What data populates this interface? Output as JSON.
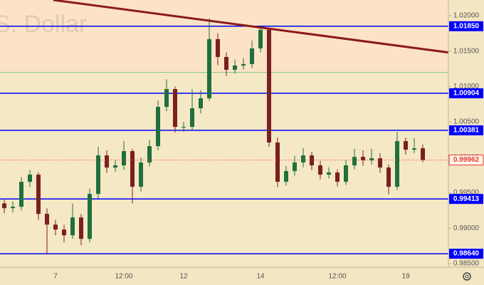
{
  "chart_data": {
    "type": "candlestick",
    "watermark": "S. Dollar",
    "categories": [
      null,
      null,
      null,
      null,
      null,
      null,
      "7",
      null,
      null,
      null,
      null,
      null,
      null,
      null,
      "12:00",
      null,
      null,
      null,
      null,
      null,
      null,
      "12",
      null,
      null,
      null,
      null,
      null,
      null,
      null,
      null,
      "14",
      null,
      null,
      null,
      null,
      null,
      null,
      null,
      null,
      "12:00",
      null,
      null,
      null,
      null,
      null,
      null,
      null,
      "19",
      null,
      null
    ],
    "open": [
      0.9935,
      0.99283,
      0.99303,
      0.99655,
      0.99756,
      0.99202,
      0.99051,
      0.98981,
      0.989,
      0.99152,
      0.9885,
      0.99484,
      1.00027,
      0.99856,
      0.99887,
      1.00088,
      0.99585,
      0.99927,
      1.00158,
      1.00712,
      1.00963,
      1.0043,
      1.0043,
      1.00692,
      1.00833,
      1.01668,
      1.01416,
      1.01235,
      1.01296,
      1.01316,
      1.01537,
      1.01799,
      1.00209,
      0.99655,
      0.99806,
      0.99927,
      1.00027,
      0.99887,
      0.99756,
      0.99786,
      0.99655,
      0.99887,
      1.00007,
      0.99957,
      0.99987,
      0.99856,
      0.99585,
      1.00229,
      1.00108,
      1.00128
    ],
    "high": [
      0.9942,
      0.9938,
      0.9972,
      0.9982,
      0.9979,
      0.9928,
      0.9912,
      0.9905,
      0.9935,
      0.992,
      0.9956,
      1.0015,
      1.001,
      0.9996,
      1.0023,
      1.0012,
      1.0,
      1.0025,
      1.008,
      1.011,
      1.01,
      1.005,
      1.0096,
      1.0095,
      1.0196,
      1.0175,
      1.0148,
      1.0138,
      1.014,
      1.0165,
      1.0186,
      1.0183,
      1.0028,
      0.9988,
      1.0002,
      1.0013,
      1.0008,
      0.9995,
      0.9986,
      0.9983,
      0.9996,
      1.0012,
      1.001,
      1.0012,
      1.0006,
      0.999,
      1.0036,
      1.0028,
      1.0027,
      1.0018
    ],
    "low": [
      0.9921,
      0.9922,
      0.9925,
      0.9958,
      0.9912,
      0.9864,
      0.989,
      0.988,
      0.9885,
      0.9876,
      0.988,
      0.9942,
      0.9978,
      0.998,
      0.9982,
      0.9935,
      0.9952,
      0.9987,
      1.001,
      1.0065,
      1.0035,
      1.0036,
      1.0038,
      1.0062,
      1.008,
      1.013,
      1.0115,
      1.0118,
      1.0124,
      1.0126,
      1.0148,
      1.0015,
      0.9958,
      0.996,
      0.9974,
      0.9986,
      0.9982,
      0.9969,
      0.997,
      0.9959,
      0.9961,
      0.9983,
      0.9988,
      0.999,
      0.9978,
      0.9948,
      0.9954,
      1.0004,
      1.0006,
      0.9993
    ],
    "close": [
      0.99283,
      0.99303,
      0.99655,
      0.99756,
      0.99202,
      0.99051,
      0.98981,
      0.989,
      0.99152,
      0.9885,
      0.99484,
      1.00027,
      0.99856,
      0.99887,
      1.00088,
      0.99585,
      0.99927,
      1.00158,
      1.00712,
      1.00963,
      1.0043,
      1.0043,
      1.00692,
      1.00833,
      1.01668,
      1.01416,
      1.01235,
      1.01296,
      1.01316,
      1.01537,
      1.01799,
      1.00209,
      0.99655,
      0.99806,
      0.99927,
      1.00027,
      0.99887,
      0.99756,
      0.99786,
      0.99655,
      0.99887,
      1.00007,
      0.99957,
      0.99987,
      0.99856,
      0.99585,
      1.00229,
      1.00108,
      1.00128,
      0.99962
    ],
    "up_color": "#1f6f3f",
    "down_color": "#7a2020",
    "ylim": [
      0.9845,
      1.0222
    ],
    "yticks": [
      {
        "value": 0.985,
        "label": "0.98500"
      },
      {
        "value": 0.99,
        "label": "0.99000"
      },
      {
        "value": 0.995,
        "label": "0.99500"
      },
      {
        "value": 1.0,
        "label": "1.00000"
      },
      {
        "value": 1.005,
        "label": "1.00500"
      },
      {
        "value": 1.01,
        "label": "1.01000"
      },
      {
        "value": 1.015,
        "label": "1.01500"
      },
      {
        "value": 1.02,
        "label": "1.02000"
      }
    ],
    "levels": [
      {
        "value": 1.0185,
        "label": "1.01850"
      },
      {
        "value": 1.00904,
        "label": "1.00904"
      },
      {
        "value": 1.00381,
        "label": "1.00381"
      },
      {
        "value": 0.99413,
        "label": "0.99413"
      },
      {
        "value": 0.9864,
        "label": "0.98640"
      }
    ],
    "level_color": "#0000ff",
    "last_price": {
      "value": 0.99962,
      "label": "0.99962",
      "color": "#e53935"
    },
    "zone_line": {
      "value": 1.012,
      "color": "#7fc98f"
    },
    "trend_line": {
      "x": [
        5.75,
        52
      ],
      "values": [
        1.0222,
        1.0148
      ],
      "color": "#8b1a1a"
    }
  }
}
